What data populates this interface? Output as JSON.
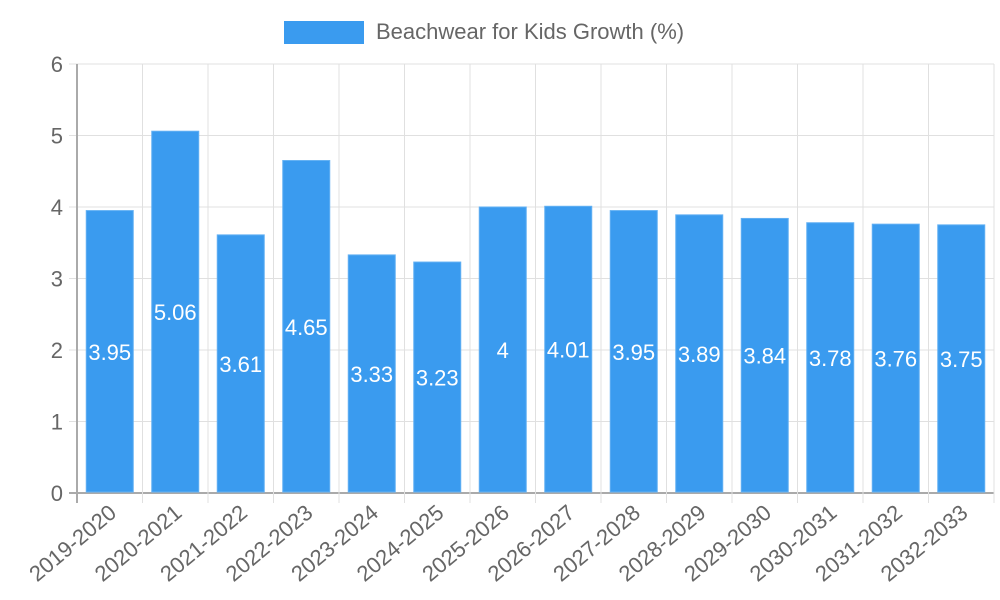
{
  "legend": {
    "label": "Beachwear for Kids Growth (%)",
    "color": "#3a9bef"
  },
  "colors": {
    "bar": "#3a9bef",
    "grid": "#e0e0e0",
    "axis": "#aaaaaa",
    "tick_text": "#666666",
    "data_label": "#ffffff"
  },
  "chart_data": {
    "type": "bar",
    "title": "",
    "xlabel": "",
    "ylabel": "",
    "ylim": [
      0,
      6
    ],
    "yticks": [
      0,
      1,
      2,
      3,
      4,
      5,
      6
    ],
    "grid": true,
    "legend_position": "top",
    "categories": [
      "2019-2020",
      "2020-2021",
      "2021-2022",
      "2022-2023",
      "2023-2024",
      "2024-2025",
      "2025-2026",
      "2026-2027",
      "2027-2028",
      "2028-2029",
      "2029-2030",
      "2030-2031",
      "2031-2032",
      "2032-2033"
    ],
    "series": [
      {
        "name": "Beachwear for Kids Growth (%)",
        "values": [
          3.95,
          5.06,
          3.61,
          4.65,
          3.33,
          3.23,
          4,
          4.01,
          3.95,
          3.89,
          3.84,
          3.78,
          3.76,
          3.75
        ]
      }
    ]
  }
}
